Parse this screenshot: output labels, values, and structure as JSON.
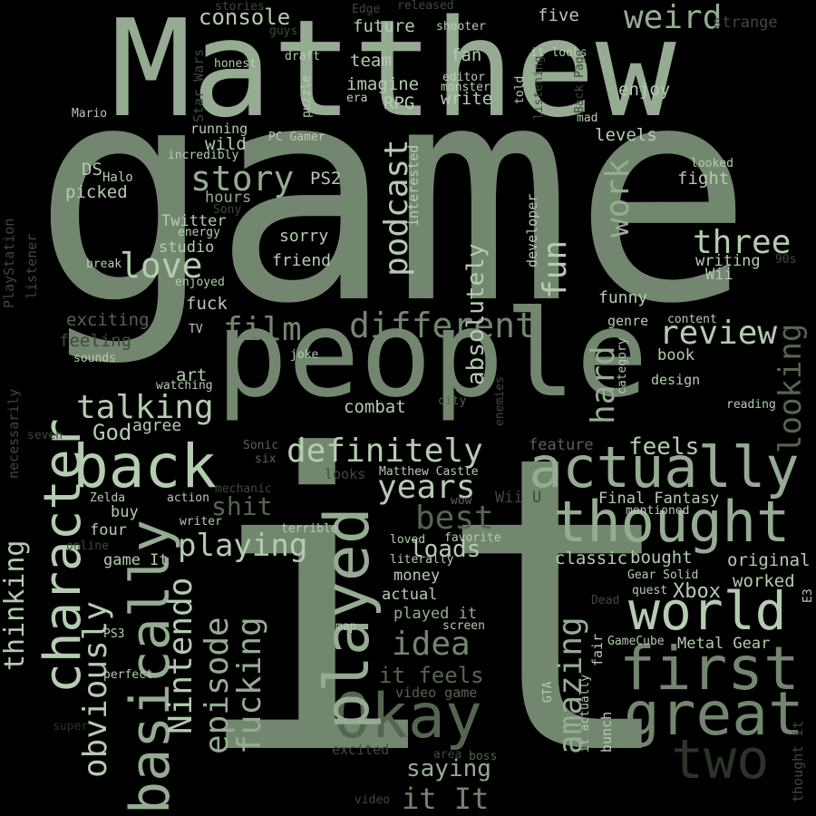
{
  "background": "#000000",
  "palette": {
    "fg1": "#b4ccb0",
    "fg2": "#95ac92",
    "fg3": "#73866f",
    "fg4": "#566552",
    "fg5": "#3d4a3b",
    "fg6": "#2b3429"
  },
  "words": [
    {
      "text": "game",
      "weight": 1.0,
      "tone": "fg3",
      "rotated": false
    },
    {
      "text": "it",
      "weight": 0.98,
      "tone": "fg3",
      "rotated": false
    },
    {
      "text": "Matthew",
      "weight": 0.6,
      "tone": "fg2",
      "rotated": false
    },
    {
      "text": "people",
      "weight": 0.55,
      "tone": "fg3",
      "rotated": false
    },
    {
      "text": "actually",
      "weight": 0.3,
      "tone": "fg2",
      "rotated": false
    },
    {
      "text": "thought",
      "weight": 0.3,
      "tone": "fg2",
      "rotated": false
    },
    {
      "text": "back",
      "weight": 0.3,
      "tone": "fg1",
      "rotated": false
    },
    {
      "text": "world",
      "weight": 0.28,
      "tone": "fg1",
      "rotated": false
    },
    {
      "text": "first",
      "weight": 0.28,
      "tone": "fg3",
      "rotated": false
    },
    {
      "text": "great",
      "weight": 0.28,
      "tone": "fg3",
      "rotated": false
    },
    {
      "text": "Okay",
      "weight": 0.28,
      "tone": "fg4",
      "rotated": false
    },
    {
      "text": "two",
      "weight": 0.25,
      "tone": "fg6",
      "rotated": false
    },
    {
      "text": "character",
      "weight": 0.24,
      "tone": "fg1",
      "rotated": true
    },
    {
      "text": "basically",
      "weight": 0.24,
      "tone": "fg2",
      "rotated": true
    },
    {
      "text": "played",
      "weight": 0.24,
      "tone": "fg2",
      "rotated": true
    },
    {
      "text": "definitely",
      "weight": 0.17,
      "tone": "fg1",
      "rotated": false
    },
    {
      "text": "different",
      "weight": 0.17,
      "tone": "fg3",
      "rotated": false
    },
    {
      "text": "love",
      "weight": 0.17,
      "tone": "fg1",
      "rotated": false
    },
    {
      "text": "story",
      "weight": 0.17,
      "tone": "fg2",
      "rotated": false
    },
    {
      "text": "years",
      "weight": 0.17,
      "tone": "fg1",
      "rotated": false
    },
    {
      "text": "playing",
      "weight": 0.17,
      "tone": "fg1",
      "rotated": false
    },
    {
      "text": "review",
      "weight": 0.17,
      "tone": "fg1",
      "rotated": false
    },
    {
      "text": "three",
      "weight": 0.17,
      "tone": "fg1",
      "rotated": false
    },
    {
      "text": "talking",
      "weight": 0.17,
      "tone": "fg1",
      "rotated": false
    },
    {
      "text": "weird",
      "weight": 0.17,
      "tone": "fg2",
      "rotated": false
    },
    {
      "text": "film",
      "weight": 0.17,
      "tone": "fg3",
      "rotated": false
    },
    {
      "text": "best",
      "weight": 0.17,
      "tone": "fg4",
      "rotated": false
    },
    {
      "text": "idea",
      "weight": 0.17,
      "tone": "fg3",
      "rotated": false
    },
    {
      "text": "loads",
      "weight": 0.13,
      "tone": "fg1",
      "rotated": false
    },
    {
      "text": "it feels",
      "weight": 0.13,
      "tone": "fg4",
      "rotated": false
    },
    {
      "text": "it It",
      "weight": 0.13,
      "tone": "fg3",
      "rotated": false
    },
    {
      "text": "saying",
      "weight": 0.13,
      "tone": "fg2",
      "rotated": false
    },
    {
      "text": "feels",
      "weight": 0.13,
      "tone": "fg1",
      "rotated": false
    },
    {
      "text": "shit",
      "weight": 0.13,
      "tone": "fg4",
      "rotated": false
    },
    {
      "text": "God",
      "weight": 0.13,
      "tone": "fg1",
      "rotated": false
    },
    {
      "text": "obviously",
      "weight": 0.17,
      "tone": "fg1",
      "rotated": true
    },
    {
      "text": "Nintendo",
      "weight": 0.17,
      "tone": "fg1",
      "rotated": true
    },
    {
      "text": "episode",
      "weight": 0.17,
      "tone": "fg2",
      "rotated": true
    },
    {
      "text": "fucking",
      "weight": 0.17,
      "tone": "fg2",
      "rotated": true
    },
    {
      "text": "amazing",
      "weight": 0.17,
      "tone": "fg2",
      "rotated": true
    },
    {
      "text": "podcast",
      "weight": 0.17,
      "tone": "fg1",
      "rotated": true
    },
    {
      "text": "fun",
      "weight": 0.17,
      "tone": "fg1",
      "rotated": true
    },
    {
      "text": "work",
      "weight": 0.17,
      "tone": "fg2",
      "rotated": true
    },
    {
      "text": "hard",
      "weight": 0.17,
      "tone": "fg2",
      "rotated": true
    },
    {
      "text": "looking",
      "weight": 0.13,
      "tone": "fg4",
      "rotated": true
    },
    {
      "text": "thinking",
      "weight": 0.13,
      "tone": "fg1",
      "rotated": true
    },
    {
      "text": "absolutely",
      "weight": 0.13,
      "tone": "fg1",
      "rotated": true
    },
    {
      "text": "console",
      "weight": 0.1,
      "tone": "fg1",
      "rotated": false
    },
    {
      "text": "future",
      "weight": 0.08,
      "tone": "fg1",
      "rotated": false
    },
    {
      "text": "team",
      "weight": 0.08,
      "tone": "fg1",
      "rotated": false
    },
    {
      "text": "imagine",
      "weight": 0.08,
      "tone": "fg1",
      "rotated": false
    },
    {
      "text": "write",
      "weight": 0.08,
      "tone": "fg1",
      "rotated": false
    },
    {
      "text": "RPG",
      "weight": 0.08,
      "tone": "fg1",
      "rotated": false
    },
    {
      "text": "fan",
      "weight": 0.08,
      "tone": "fg1",
      "rotated": false
    },
    {
      "text": "five",
      "weight": 0.08,
      "tone": "fg1",
      "rotated": false
    },
    {
      "text": "enjoy",
      "weight": 0.08,
      "tone": "fg1",
      "rotated": false
    },
    {
      "text": "levels",
      "weight": 0.08,
      "tone": "fg1",
      "rotated": false
    },
    {
      "text": "fight",
      "weight": 0.08,
      "tone": "fg1",
      "rotated": false
    },
    {
      "text": "writing",
      "weight": 0.07,
      "tone": "fg1",
      "rotated": false
    },
    {
      "text": "Wii",
      "weight": 0.07,
      "tone": "fg1",
      "rotated": false
    },
    {
      "text": "funny",
      "weight": 0.07,
      "tone": "fg1",
      "rotated": false
    },
    {
      "text": "book",
      "weight": 0.07,
      "tone": "fg1",
      "rotated": false
    },
    {
      "text": "design",
      "weight": 0.06,
      "tone": "fg1",
      "rotated": false
    },
    {
      "text": "running",
      "weight": 0.06,
      "tone": "fg1",
      "rotated": false
    },
    {
      "text": "wild",
      "weight": 0.08,
      "tone": "fg1",
      "rotated": false
    },
    {
      "text": "PC Gamer",
      "weight": 0.06,
      "tone": "fg1",
      "rotated": false
    },
    {
      "text": "PS2",
      "weight": 0.08,
      "tone": "fg1",
      "rotated": false
    },
    {
      "text": "hours",
      "weight": 0.08,
      "tone": "fg2",
      "rotated": false
    },
    {
      "text": "Twitter",
      "weight": 0.08,
      "tone": "fg1",
      "rotated": false
    },
    {
      "text": "studio",
      "weight": 0.08,
      "tone": "fg1",
      "rotated": false
    },
    {
      "text": "sorry",
      "weight": 0.08,
      "tone": "fg1",
      "rotated": false
    },
    {
      "text": "friend",
      "weight": 0.08,
      "tone": "fg1",
      "rotated": false
    },
    {
      "text": "DS",
      "weight": 0.08,
      "tone": "fg1",
      "rotated": false
    },
    {
      "text": "Halo",
      "weight": 0.06,
      "tone": "fg1",
      "rotated": false
    },
    {
      "text": "picked",
      "weight": 0.08,
      "tone": "fg1",
      "rotated": false
    },
    {
      "text": "fuck",
      "weight": 0.08,
      "tone": "fg1",
      "rotated": false
    },
    {
      "text": "exciting",
      "weight": 0.08,
      "tone": "fg4",
      "rotated": false
    },
    {
      "text": "feeling",
      "weight": 0.08,
      "tone": "fg5",
      "rotated": false
    },
    {
      "text": "art",
      "weight": 0.08,
      "tone": "fg1",
      "rotated": false
    },
    {
      "text": "combat",
      "weight": 0.08,
      "tone": "fg1",
      "rotated": false
    },
    {
      "text": "agree",
      "weight": 0.08,
      "tone": "fg1",
      "rotated": false
    },
    {
      "text": "feature",
      "weight": 0.07,
      "tone": "fg4",
      "rotated": false
    },
    {
      "text": "original",
      "weight": 0.08,
      "tone": "fg1",
      "rotated": false
    },
    {
      "text": "bought",
      "weight": 0.08,
      "tone": "fg1",
      "rotated": false
    },
    {
      "text": "classic",
      "weight": 0.08,
      "tone": "fg1",
      "rotated": false
    },
    {
      "text": "worked",
      "weight": 0.08,
      "tone": "fg1",
      "rotated": false
    },
    {
      "text": "Xbox",
      "weight": 0.09,
      "tone": "fg1",
      "rotated": false
    },
    {
      "text": "Metal Gear",
      "weight": 0.07,
      "tone": "fg1",
      "rotated": false
    },
    {
      "text": "Final Fantasy",
      "weight": 0.07,
      "tone": "fg1",
      "rotated": false
    },
    {
      "text": "money",
      "weight": 0.07,
      "tone": "fg1",
      "rotated": false
    },
    {
      "text": "actual",
      "weight": 0.07,
      "tone": "fg1",
      "rotated": false
    },
    {
      "text": "game It",
      "weight": 0.07,
      "tone": "fg1",
      "rotated": false
    },
    {
      "text": "four",
      "weight": 0.07,
      "tone": "fg1",
      "rotated": false
    },
    {
      "text": "buy",
      "weight": 0.07,
      "tone": "fg1",
      "rotated": false
    },
    {
      "text": "played it",
      "weight": 0.07,
      "tone": "fg2",
      "rotated": false
    },
    {
      "text": "video game",
      "weight": 0.06,
      "tone": "fg4",
      "rotated": false
    },
    {
      "text": "excited",
      "weight": 0.06,
      "tone": "fg5",
      "rotated": false
    },
    {
      "text": "Wii U",
      "weight": 0.06,
      "tone": "fg5",
      "rotated": false
    },
    {
      "text": "Matthew Castle",
      "weight": 0.05,
      "tone": "fg1",
      "rotated": false
    },
    {
      "text": "looks",
      "weight": 0.06,
      "tone": "fg5",
      "rotated": false
    },
    {
      "text": "Zelda",
      "weight": 0.05,
      "tone": "fg1",
      "rotated": false
    },
    {
      "text": "action",
      "weight": 0.05,
      "tone": "fg1",
      "rotated": false
    },
    {
      "text": "mechanic",
      "weight": 0.05,
      "tone": "fg5",
      "rotated": false
    },
    {
      "text": "writer",
      "weight": 0.05,
      "tone": "fg1",
      "rotated": false
    },
    {
      "text": "online",
      "weight": 0.05,
      "tone": "fg5",
      "rotated": false
    },
    {
      "text": "terrible",
      "weight": 0.05,
      "tone": "fg1",
      "rotated": false
    },
    {
      "text": "loved",
      "weight": 0.05,
      "tone": "fg1",
      "rotated": false
    },
    {
      "text": "favorite",
      "weight": 0.05,
      "tone": "fg1",
      "rotated": false
    },
    {
      "text": "literally",
      "weight": 0.05,
      "tone": "fg1",
      "rotated": false
    },
    {
      "text": "wow",
      "weight": 0.05,
      "tone": "fg4",
      "rotated": false
    },
    {
      "text": "screen",
      "weight": 0.05,
      "tone": "fg1",
      "rotated": false
    },
    {
      "text": "map",
      "weight": 0.05,
      "tone": "fg1",
      "rotated": false
    },
    {
      "text": "GameCube",
      "weight": 0.05,
      "tone": "fg1",
      "rotated": false
    },
    {
      "text": "Gear Solid",
      "weight": 0.05,
      "tone": "fg1",
      "rotated": false
    },
    {
      "text": "quest",
      "weight": 0.05,
      "tone": "fg1",
      "rotated": false
    },
    {
      "text": "mentioned",
      "weight": 0.05,
      "tone": "fg1",
      "rotated": false
    },
    {
      "text": "Dead",
      "weight": 0.05,
      "tone": "fg5",
      "rotated": false
    },
    {
      "text": "perfect",
      "weight": 0.05,
      "tone": "fg1",
      "rotated": false
    },
    {
      "text": "PS3",
      "weight": 0.05,
      "tone": "fg1",
      "rotated": false
    },
    {
      "text": "area",
      "weight": 0.05,
      "tone": "fg5",
      "rotated": false
    },
    {
      "text": "boss",
      "weight": 0.05,
      "tone": "fg4",
      "rotated": false
    },
    {
      "text": "video",
      "weight": 0.05,
      "tone": "fg5",
      "rotated": false
    },
    {
      "text": "super",
      "weight": 0.05,
      "tone": "fg6",
      "rotated": false
    },
    {
      "text": "Sonic",
      "weight": 0.05,
      "tone": "fg4",
      "rotated": false
    },
    {
      "text": "six",
      "weight": 0.05,
      "tone": "fg4",
      "rotated": false
    },
    {
      "text": "seven",
      "weight": 0.05,
      "tone": "fg5",
      "rotated": false
    },
    {
      "text": "city",
      "weight": 0.05,
      "tone": "fg4",
      "rotated": false
    },
    {
      "text": "reading",
      "weight": 0.05,
      "tone": "fg1",
      "rotated": false
    },
    {
      "text": "content",
      "weight": 0.05,
      "tone": "fg1",
      "rotated": false
    },
    {
      "text": "TV",
      "weight": 0.05,
      "tone": "fg1",
      "rotated": false
    },
    {
      "text": "sounds",
      "weight": 0.05,
      "tone": "fg1",
      "rotated": false
    },
    {
      "text": "watching",
      "weight": 0.05,
      "tone": "fg1",
      "rotated": false
    },
    {
      "text": "joke",
      "weight": 0.05,
      "tone": "fg1",
      "rotated": false
    },
    {
      "text": "genre",
      "weight": 0.05,
      "tone": "fg1",
      "rotated": false
    },
    {
      "text": "looked",
      "weight": 0.05,
      "tone": "fg1",
      "rotated": false
    },
    {
      "text": "enjoyed",
      "weight": 0.05,
      "tone": "fg1",
      "rotated": false
    },
    {
      "text": "energy",
      "weight": 0.05,
      "tone": "fg1",
      "rotated": false
    },
    {
      "text": "break",
      "weight": 0.05,
      "tone": "fg1",
      "rotated": false
    },
    {
      "text": "incredibly",
      "weight": 0.05,
      "tone": "fg1",
      "rotated": false
    },
    {
      "text": "Sony",
      "weight": 0.05,
      "tone": "fg5",
      "rotated": false
    },
    {
      "text": "honest",
      "weight": 0.05,
      "tone": "fg1",
      "rotated": false
    },
    {
      "text": "draft",
      "weight": 0.05,
      "tone": "fg1",
      "rotated": false
    },
    {
      "text": "editor",
      "weight": 0.05,
      "tone": "fg1",
      "rotated": false
    },
    {
      "text": "monster",
      "weight": 0.05,
      "tone": "fg1",
      "rotated": false
    },
    {
      "text": "era",
      "weight": 0.05,
      "tone": "fg1",
      "rotated": false
    },
    {
      "text": "guys",
      "weight": 0.05,
      "tone": "fg5",
      "rotated": false
    },
    {
      "text": "stories",
      "weight": 0.05,
      "tone": "fg5",
      "rotated": false
    },
    {
      "text": "Edge",
      "weight": 0.05,
      "tone": "fg5",
      "rotated": false
    },
    {
      "text": "released",
      "weight": 0.05,
      "tone": "fg5",
      "rotated": false
    },
    {
      "text": "shooter",
      "weight": 0.05,
      "tone": "fg1",
      "rotated": false
    },
    {
      "text": "it looks",
      "weight": 0.05,
      "tone": "fg1",
      "rotated": false
    },
    {
      "text": "strange",
      "weight": 0.06,
      "tone": "fg5",
      "rotated": false
    },
    {
      "text": "mad",
      "weight": 0.05,
      "tone": "fg1",
      "rotated": false
    },
    {
      "text": "Mario",
      "weight": 0.05,
      "tone": "fg1",
      "rotated": false
    },
    {
      "text": "90s",
      "weight": 0.05,
      "tone": "fg5",
      "rotated": false
    },
    {
      "text": "interested",
      "weight": 0.05,
      "tone": "fg1",
      "rotated": true
    },
    {
      "text": "developer",
      "weight": 0.05,
      "tone": "fg1",
      "rotated": true
    },
    {
      "text": "enemies",
      "weight": 0.05,
      "tone": "fg5",
      "rotated": true
    },
    {
      "text": "category",
      "weight": 0.05,
      "tone": "fg1",
      "rotated": true
    },
    {
      "text": "fair",
      "weight": 0.05,
      "tone": "fg1",
      "rotated": true
    },
    {
      "text": "bunch",
      "weight": 0.05,
      "tone": "fg1",
      "rotated": true
    },
    {
      "text": "it actually",
      "weight": 0.05,
      "tone": "fg1",
      "rotated": true
    },
    {
      "text": "GTA",
      "weight": 0.05,
      "tone": "fg1",
      "rotated": true
    },
    {
      "text": "E3",
      "weight": 0.05,
      "tone": "fg1",
      "rotated": true
    },
    {
      "text": "thought it",
      "weight": 0.05,
      "tone": "fg5",
      "rotated": true
    },
    {
      "text": "PlayStation",
      "weight": 0.05,
      "tone": "fg5",
      "rotated": true
    },
    {
      "text": "listener",
      "weight": 0.05,
      "tone": "fg5",
      "rotated": true
    },
    {
      "text": "necessarily",
      "weight": 0.05,
      "tone": "fg5",
      "rotated": true
    },
    {
      "text": "Star Wars",
      "weight": 0.05,
      "tone": "fg5",
      "rotated": true
    },
    {
      "text": "puzzle",
      "weight": 0.05,
      "tone": "fg1",
      "rotated": true
    },
    {
      "text": "told",
      "weight": 0.05,
      "tone": "fg1",
      "rotated": true
    },
    {
      "text": "listening",
      "weight": 0.05,
      "tone": "fg5",
      "rotated": true
    },
    {
      "text": "Back Page",
      "weight": 0.05,
      "tone": "fg5",
      "rotated": true
    }
  ]
}
